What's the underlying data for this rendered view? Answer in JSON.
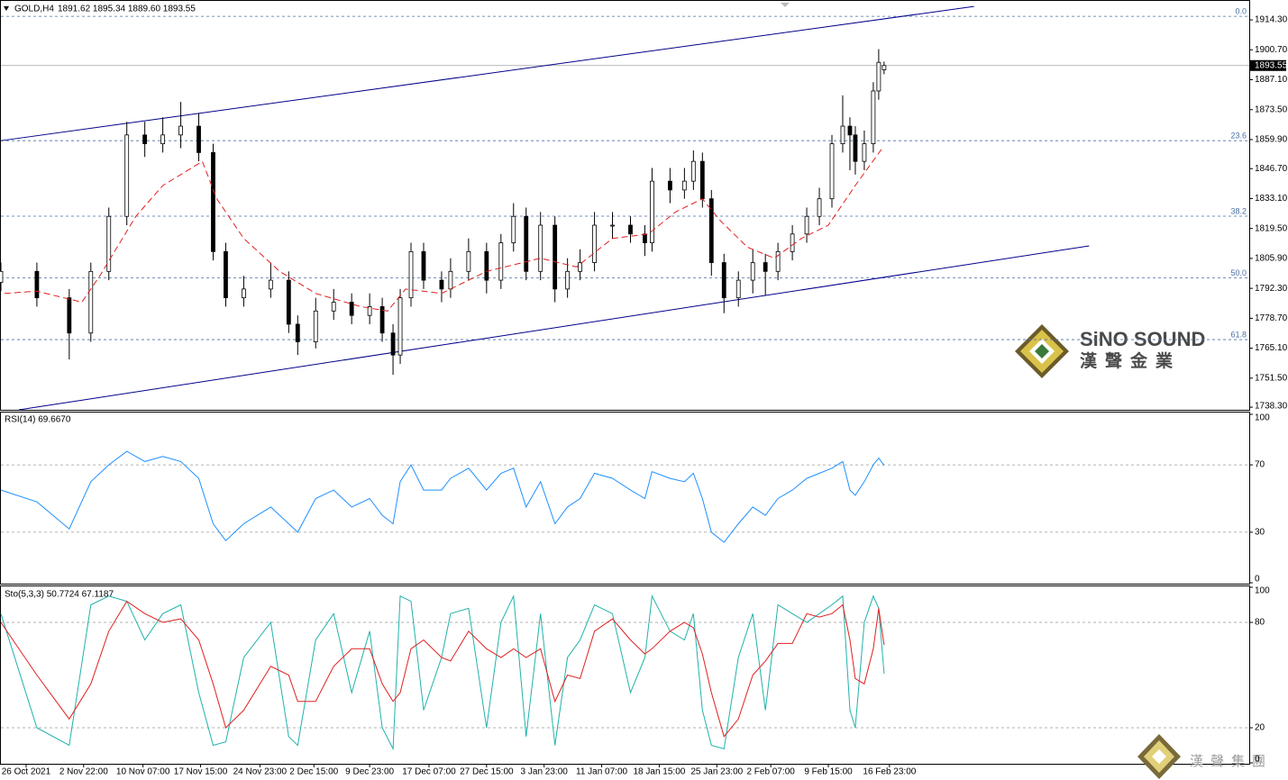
{
  "chart_data": [
    {
      "type": "candlestick",
      "title": "GOLD,H4",
      "subtitle": "1891.62 1895.34 1889.60 1893.55",
      "x": [
        0,
        20,
        38,
        50,
        60,
        70,
        80,
        90,
        100,
        110,
        118,
        125,
        135,
        150,
        160,
        165,
        175,
        185,
        195,
        205,
        212,
        218,
        222,
        228,
        235,
        245,
        250,
        260,
        270,
        278,
        285,
        292,
        300,
        308,
        315,
        322,
        330,
        340,
        350,
        358,
        362,
        372,
        380,
        385,
        390,
        395,
        402,
        410,
        418,
        425,
        432,
        440,
        448,
        455,
        462,
        468,
        472,
        475,
        480,
        485,
        488,
        491
      ],
      "open": [
        1795,
        1800,
        1788,
        1772,
        1800,
        1825,
        1862,
        1858,
        1862,
        1866,
        1854,
        1809,
        1788,
        1792,
        1796,
        1776,
        1768,
        1782,
        1786,
        1780,
        1784,
        1772,
        1762,
        1788,
        1809,
        1796,
        1792,
        1800,
        1809,
        1796,
        1813,
        1825,
        1800,
        1821,
        1792,
        1800,
        1804,
        1821,
        1821,
        1817,
        1813,
        1841,
        1837,
        1841,
        1850,
        1833,
        1804,
        1788,
        1796,
        1804,
        1800,
        1809,
        1817,
        1825,
        1833,
        1858,
        1866,
        1862,
        1850,
        1858,
        1882,
        1891.62
      ],
      "high": [
        1804,
        1804,
        1792,
        1804,
        1829,
        1868,
        1868,
        1870,
        1877,
        1872,
        1858,
        1813,
        1798,
        1804,
        1800,
        1780,
        1788,
        1792,
        1790,
        1790,
        1788,
        1776,
        1792,
        1813,
        1813,
        1800,
        1806,
        1815,
        1813,
        1817,
        1831,
        1829,
        1827,
        1825,
        1806,
        1810,
        1827,
        1827,
        1825,
        1821,
        1847,
        1847,
        1847,
        1855,
        1854,
        1837,
        1808,
        1800,
        1810,
        1808,
        1813,
        1821,
        1829,
        1838,
        1862,
        1880,
        1870,
        1866,
        1864,
        1886,
        1901,
        1895.34
      ],
      "low": [
        1791,
        1784,
        1760,
        1768,
        1796,
        1821,
        1852,
        1854,
        1856,
        1850,
        1805,
        1784,
        1784,
        1788,
        1772,
        1762,
        1765,
        1778,
        1776,
        1776,
        1768,
        1753,
        1758,
        1784,
        1792,
        1786,
        1788,
        1796,
        1790,
        1792,
        1809,
        1796,
        1796,
        1786,
        1788,
        1796,
        1800,
        1815,
        1813,
        1807,
        1809,
        1831,
        1833,
        1837,
        1829,
        1798,
        1781,
        1784,
        1790,
        1789,
        1796,
        1805,
        1813,
        1821,
        1829,
        1854,
        1846,
        1844,
        1846,
        1854,
        1878,
        1889.6
      ],
      "close": [
        1800,
        1788,
        1772,
        1800,
        1825,
        1862,
        1858,
        1862,
        1866,
        1854,
        1809,
        1788,
        1792,
        1796,
        1776,
        1768,
        1782,
        1786,
        1780,
        1784,
        1772,
        1762,
        1788,
        1809,
        1796,
        1792,
        1800,
        1809,
        1796,
        1813,
        1825,
        1800,
        1821,
        1792,
        1800,
        1804,
        1821,
        1821,
        1817,
        1813,
        1841,
        1837,
        1841,
        1850,
        1833,
        1804,
        1788,
        1796,
        1804,
        1800,
        1809,
        1817,
        1825,
        1833,
        1858,
        1866,
        1862,
        1850,
        1858,
        1882,
        1895,
        1893.55
      ],
      "color": "#000000",
      "xlim": [
        0,
        694
      ],
      "xticks": [
        {
          "value": 14,
          "label": "26 Oct 2021"
        },
        {
          "value": 46,
          "label": "2 Nov 22:00"
        },
        {
          "value": 79,
          "label": "10 Nov 07:00"
        },
        {
          "value": 111,
          "label": "17 Nov 15:00"
        },
        {
          "value": 144,
          "label": "24 Nov 23:00"
        },
        {
          "value": 174,
          "label": "2 Dec 15:00"
        },
        {
          "value": 205,
          "label": "9 Dec 23:00"
        },
        {
          "value": 238,
          "label": "17 Dec 07:00"
        },
        {
          "value": 270,
          "label": "27 Dec 15:00"
        },
        {
          "value": 302,
          "label": "3 Jan 23:00"
        },
        {
          "value": 334,
          "label": "11 Jan 07:00"
        },
        {
          "value": 366,
          "label": "18 Jan 15:00"
        },
        {
          "value": 398,
          "label": "25 Jan 23:00"
        },
        {
          "value": 428,
          "label": "2 Feb 07:00"
        },
        {
          "value": 460,
          "label": "9 Feb 15:00"
        },
        {
          "value": 494,
          "label": "16 Feb 23:00"
        }
      ],
      "ylim": [
        1737.1,
        1922.1
      ],
      "yticks": [
        {
          "value": 1914.3,
          "label": "1914.30"
        },
        {
          "value": 1900.7,
          "label": "1900.70"
        },
        {
          "value": 1887.1,
          "label": "1887.10"
        },
        {
          "value": 1873.5,
          "label": "1873.50"
        },
        {
          "value": 1859.9,
          "label": "1859.90"
        },
        {
          "value": 1846.7,
          "label": "1846.70"
        },
        {
          "value": 1833.1,
          "label": "1833.10"
        },
        {
          "value": 1819.5,
          "label": "1819.50"
        },
        {
          "value": 1805.9,
          "label": "1805.90"
        },
        {
          "value": 1792.3,
          "label": "1792.30"
        },
        {
          "value": 1778.7,
          "label": "1778.70"
        },
        {
          "value": 1765.1,
          "label": "1765.10"
        },
        {
          "value": 1751.5,
          "label": "1751.50"
        },
        {
          "value": 1738.3,
          "label": "1738.30"
        }
      ],
      "moving_average": {
        "color": "#e02020",
        "x": [
          2,
          20,
          45,
          55,
          75,
          90,
          112,
          120,
          135,
          155,
          175,
          200,
          215,
          225,
          245,
          270,
          300,
          320,
          340,
          360,
          375,
          390,
          400,
          415,
          430,
          445,
          460,
          475,
          490
        ],
        "values": [
          1790,
          1791,
          1786,
          1798,
          1825,
          1839,
          1850,
          1833,
          1815,
          1800,
          1790,
          1784,
          1782,
          1792,
          1790,
          1800,
          1806,
          1802,
          1815,
          1817,
          1827,
          1833,
          1823,
          1811,
          1806,
          1815,
          1821,
          1839,
          1856
        ]
      },
      "channel_color": "#00008b",
      "channel": [
        {
          "x": [
            0,
            541
          ],
          "values": [
            1859.4,
            1920.4
          ]
        },
        {
          "x": [
            10,
            605
          ],
          "values": [
            1737.1,
            1811.6
          ]
        }
      ],
      "fib_color": "#4a6fa5",
      "fibonacci": [
        {
          "label": "0.0",
          "value": 1915.9
        },
        {
          "label": "23.6",
          "value": 1859.4
        },
        {
          "label": "38.2",
          "value": 1825.1
        },
        {
          "label": "50.0",
          "value": 1797.0
        },
        {
          "label": "61.8",
          "value": 1769.0
        }
      ],
      "last_price_color": "#a0a0a0"
    },
    {
      "type": "line",
      "title": "RSI(14) 69.6670",
      "color": "#1e90ff",
      "values": [
        55,
        48,
        32,
        60,
        70,
        78,
        72,
        75,
        72,
        62,
        35,
        25,
        35,
        45,
        35,
        30,
        50,
        55,
        45,
        50,
        40,
        35,
        60,
        70,
        55,
        55,
        62,
        68,
        55,
        65,
        68,
        45,
        60,
        35,
        45,
        50,
        65,
        62,
        55,
        50,
        66,
        62,
        60,
        65,
        50,
        30,
        24,
        35,
        45,
        40,
        50,
        55,
        62,
        65,
        68,
        72,
        55,
        52,
        60,
        70,
        74,
        69.667
      ],
      "ylim": [
        0,
        100
      ],
      "yticks": [
        0,
        30,
        70,
        100
      ],
      "levels": [
        30,
        70
      ]
    },
    {
      "type": "line",
      "title": "Sto(5,3,3) 50.7724 67.1187",
      "series": [
        {
          "color": "#20b2aa",
          "values": [
            85,
            20,
            10,
            90,
            95,
            92,
            70,
            85,
            90,
            40,
            10,
            12,
            60,
            80,
            15,
            10,
            70,
            85,
            40,
            75,
            20,
            8,
            95,
            92,
            30,
            60,
            85,
            88,
            20,
            80,
            95,
            15,
            85,
            10,
            60,
            70,
            90,
            85,
            40,
            60,
            95,
            75,
            70,
            85,
            30,
            10,
            8,
            60,
            85,
            30,
            90,
            85,
            80,
            85,
            90,
            95,
            30,
            20,
            80,
            95,
            88,
            50.7724
          ]
        },
        {
          "color": "#e02020",
          "values": [
            80,
            50,
            25,
            45,
            75,
            92,
            85,
            80,
            82,
            70,
            45,
            20,
            30,
            55,
            50,
            35,
            35,
            55,
            65,
            65,
            45,
            35,
            40,
            65,
            70,
            60,
            58,
            75,
            65,
            60,
            65,
            60,
            65,
            35,
            50,
            48,
            75,
            82,
            70,
            62,
            65,
            75,
            80,
            77,
            62,
            40,
            15,
            25,
            50,
            58,
            68,
            68,
            85,
            83,
            85,
            90,
            70,
            48,
            45,
            65,
            88,
            67.1187
          ]
        }
      ],
      "ylim": [
        0,
        100
      ],
      "yticks": [
        0,
        20,
        80,
        100
      ],
      "levels": [
        20,
        80
      ]
    }
  ],
  "logo": {
    "name": "SiNO SOUND",
    "chinese": "漢聲金業"
  },
  "watermark": "漢聲集團"
}
